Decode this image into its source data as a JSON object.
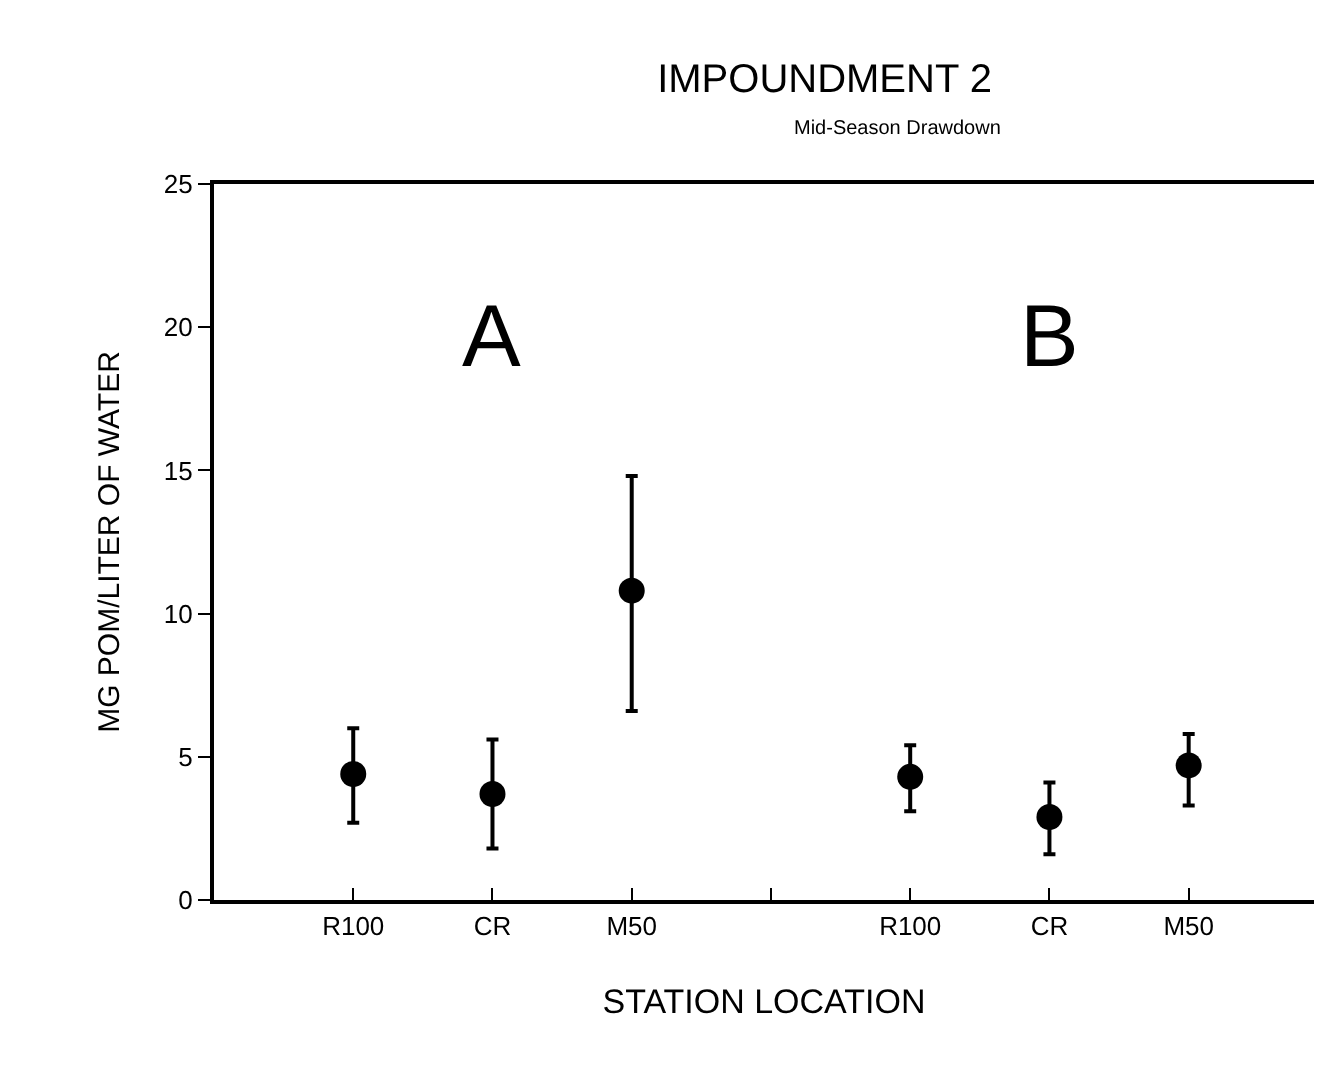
{
  "chart_data": {
    "type": "scatter",
    "title": "IMPOUNDMENT 2",
    "subtitle": "Mid-Season Drawdown",
    "xlabel": "STATION LOCATION",
    "ylabel": "MG POM/LITER OF WATER",
    "categories": [
      "R100",
      "CR",
      "M50",
      null,
      "R100",
      "CR",
      "M50"
    ],
    "series": [
      {
        "color": "#000000",
        "values": [
          4.4,
          3.7,
          10.8,
          null,
          4.3,
          2.9,
          4.7
        ],
        "errors": [
          [
            2.7,
            6.0
          ],
          [
            1.8,
            5.6
          ],
          [
            6.6,
            14.8
          ],
          null,
          [
            3.1,
            5.4
          ],
          [
            1.6,
            4.1
          ],
          [
            3.3,
            5.8
          ]
        ]
      }
    ],
    "annotations": [
      "A",
      "B"
    ],
    "ylim": [
      0,
      25
    ],
    "yticks": [
      0,
      5,
      10,
      15,
      20,
      25
    ],
    "grid": false,
    "marker": "circle"
  }
}
